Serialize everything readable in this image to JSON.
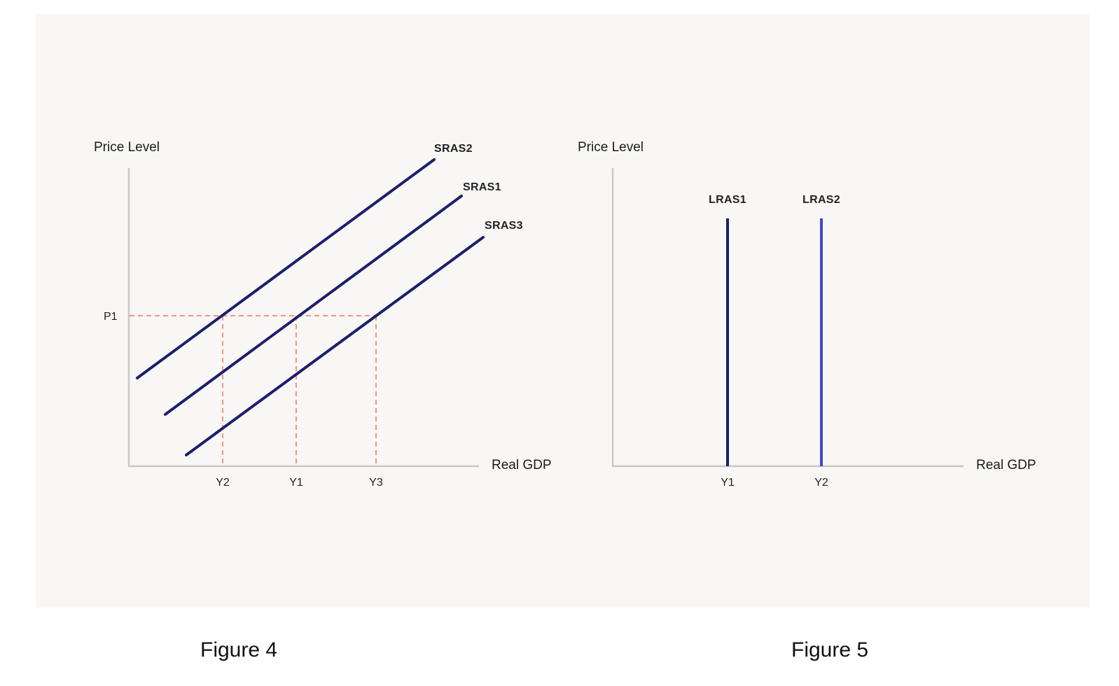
{
  "figure4": {
    "caption": "Figure 4",
    "y_axis_label": "Price Level",
    "x_axis_label": "Real GDP",
    "price_label": "P1",
    "curves": [
      "SRAS2",
      "SRAS1",
      "SRAS3"
    ],
    "x_ticks": [
      "Y2",
      "Y1",
      "Y3"
    ]
  },
  "figure5": {
    "caption": "Figure 5",
    "y_axis_label": "Price Level",
    "x_axis_label": "Real GDP",
    "curves": [
      "LRAS1",
      "LRAS2"
    ],
    "x_ticks": [
      "Y1",
      "Y2"
    ]
  },
  "colors": {
    "panel_bg": "#f8f7f6",
    "axis": "#c8c8c8",
    "sras_line": "#1b1f6b",
    "lras1_line": "#1b1f6b",
    "lras2_line": "#3b48d8",
    "guide_dashed": "#f39a88"
  }
}
